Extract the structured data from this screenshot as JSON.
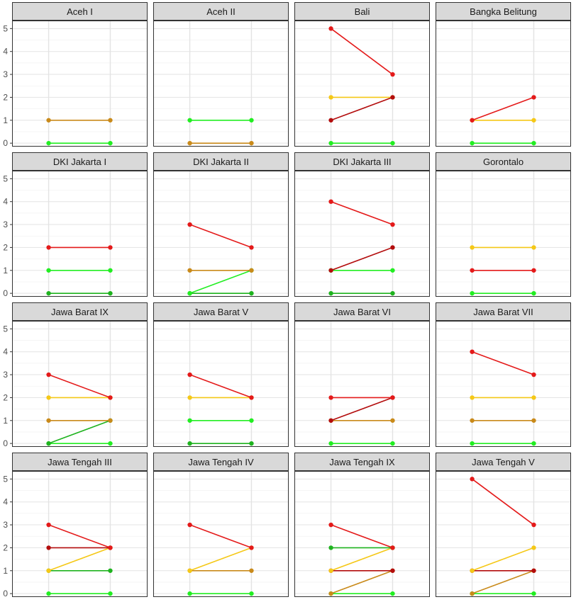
{
  "chart_data": {
    "type": "line",
    "layout": "facet-grid",
    "x_positions": [
      1,
      2
    ],
    "ylim": [
      -0.15,
      5.35
    ],
    "yticks": [
      0,
      1,
      2,
      3,
      4,
      5
    ],
    "grid": true,
    "colors": {
      "bright_green": "#22ee22",
      "green": "#1fb31f",
      "orange": "#c98a1a",
      "yellow": "#f5c817",
      "red": "#e41a1a",
      "dark_red": "#b30d0d"
    },
    "panels": [
      {
        "title": "Aceh I",
        "lines": [
          {
            "color": "bright_green",
            "y": [
              0,
              0
            ]
          },
          {
            "color": "orange",
            "y": [
              1,
              1
            ]
          }
        ]
      },
      {
        "title": "Aceh II",
        "lines": [
          {
            "color": "orange",
            "y": [
              0,
              0
            ]
          },
          {
            "color": "bright_green",
            "y": [
              1,
              1
            ]
          }
        ]
      },
      {
        "title": "Bali",
        "lines": [
          {
            "color": "bright_green",
            "y": [
              0,
              0
            ]
          },
          {
            "color": "yellow",
            "y": [
              2,
              2
            ]
          },
          {
            "color": "dark_red",
            "y": [
              1,
              2
            ]
          },
          {
            "color": "red",
            "y": [
              5,
              3
            ]
          }
        ]
      },
      {
        "title": "Bangka Belitung",
        "lines": [
          {
            "color": "bright_green",
            "y": [
              0,
              0
            ]
          },
          {
            "color": "yellow",
            "y": [
              1,
              1
            ]
          },
          {
            "color": "red",
            "y": [
              1,
              2
            ]
          }
        ]
      },
      {
        "title": "DKI Jakarta I",
        "lines": [
          {
            "color": "green",
            "y": [
              0,
              0
            ]
          },
          {
            "color": "bright_green",
            "y": [
              1,
              1
            ]
          },
          {
            "color": "red",
            "y": [
              2,
              2
            ]
          }
        ]
      },
      {
        "title": "DKI Jakarta II",
        "lines": [
          {
            "color": "green",
            "y": [
              0,
              0
            ]
          },
          {
            "color": "bright_green",
            "y": [
              0,
              1
            ]
          },
          {
            "color": "orange",
            "y": [
              1,
              1
            ]
          },
          {
            "color": "red",
            "y": [
              3,
              2
            ]
          }
        ]
      },
      {
        "title": "DKI Jakarta III",
        "lines": [
          {
            "color": "green",
            "y": [
              0,
              0
            ]
          },
          {
            "color": "bright_green",
            "y": [
              1,
              1
            ]
          },
          {
            "color": "dark_red",
            "y": [
              1,
              2
            ]
          },
          {
            "color": "red",
            "y": [
              4,
              3
            ]
          }
        ]
      },
      {
        "title": "Gorontalo",
        "lines": [
          {
            "color": "bright_green",
            "y": [
              0,
              0
            ]
          },
          {
            "color": "red",
            "y": [
              1,
              1
            ]
          },
          {
            "color": "yellow",
            "y": [
              2,
              2
            ]
          }
        ]
      },
      {
        "title": "Jawa Barat IX",
        "lines": [
          {
            "color": "bright_green",
            "y": [
              0,
              0
            ]
          },
          {
            "color": "green",
            "y": [
              0,
              1
            ]
          },
          {
            "color": "orange",
            "y": [
              1,
              1
            ]
          },
          {
            "color": "yellow",
            "y": [
              2,
              2
            ]
          },
          {
            "color": "red",
            "y": [
              3,
              2
            ]
          }
        ]
      },
      {
        "title": "Jawa Barat V",
        "lines": [
          {
            "color": "green",
            "y": [
              0,
              0
            ]
          },
          {
            "color": "bright_green",
            "y": [
              1,
              1
            ]
          },
          {
            "color": "yellow",
            "y": [
              2,
              2
            ]
          },
          {
            "color": "red",
            "y": [
              3,
              2
            ]
          }
        ]
      },
      {
        "title": "Jawa Barat VI",
        "lines": [
          {
            "color": "bright_green",
            "y": [
              0,
              0
            ]
          },
          {
            "color": "orange",
            "y": [
              1,
              1
            ]
          },
          {
            "color": "dark_red",
            "y": [
              1,
              2
            ]
          },
          {
            "color": "red",
            "y": [
              2,
              2
            ]
          }
        ]
      },
      {
        "title": "Jawa Barat VII",
        "lines": [
          {
            "color": "bright_green",
            "y": [
              0,
              0
            ]
          },
          {
            "color": "orange",
            "y": [
              1,
              1
            ]
          },
          {
            "color": "yellow",
            "y": [
              2,
              2
            ]
          },
          {
            "color": "red",
            "y": [
              4,
              3
            ]
          }
        ]
      },
      {
        "title": "Jawa Tengah III",
        "lines": [
          {
            "color": "bright_green",
            "y": [
              0,
              0
            ]
          },
          {
            "color": "green",
            "y": [
              1,
              1
            ]
          },
          {
            "color": "yellow",
            "y": [
              1,
              2
            ]
          },
          {
            "color": "dark_red",
            "y": [
              2,
              2
            ]
          },
          {
            "color": "red",
            "y": [
              3,
              2
            ]
          }
        ]
      },
      {
        "title": "Jawa Tengah IV",
        "lines": [
          {
            "color": "bright_green",
            "y": [
              0,
              0
            ]
          },
          {
            "color": "orange",
            "y": [
              1,
              1
            ]
          },
          {
            "color": "yellow",
            "y": [
              1,
              2
            ]
          },
          {
            "color": "red",
            "y": [
              3,
              2
            ]
          }
        ]
      },
      {
        "title": "Jawa Tengah IX",
        "lines": [
          {
            "color": "bright_green",
            "y": [
              0,
              0
            ]
          },
          {
            "color": "orange",
            "y": [
              0,
              1
            ]
          },
          {
            "color": "dark_red",
            "y": [
              1,
              1
            ]
          },
          {
            "color": "yellow",
            "y": [
              1,
              2
            ]
          },
          {
            "color": "green",
            "y": [
              2,
              2
            ]
          },
          {
            "color": "red",
            "y": [
              3,
              2
            ]
          }
        ]
      },
      {
        "title": "Jawa Tengah V",
        "lines": [
          {
            "color": "bright_green",
            "y": [
              0,
              0
            ]
          },
          {
            "color": "orange",
            "y": [
              0,
              1
            ]
          },
          {
            "color": "dark_red",
            "y": [
              1,
              1
            ]
          },
          {
            "color": "yellow",
            "y": [
              1,
              2
            ]
          },
          {
            "color": "red",
            "y": [
              5,
              3
            ]
          }
        ]
      }
    ]
  }
}
